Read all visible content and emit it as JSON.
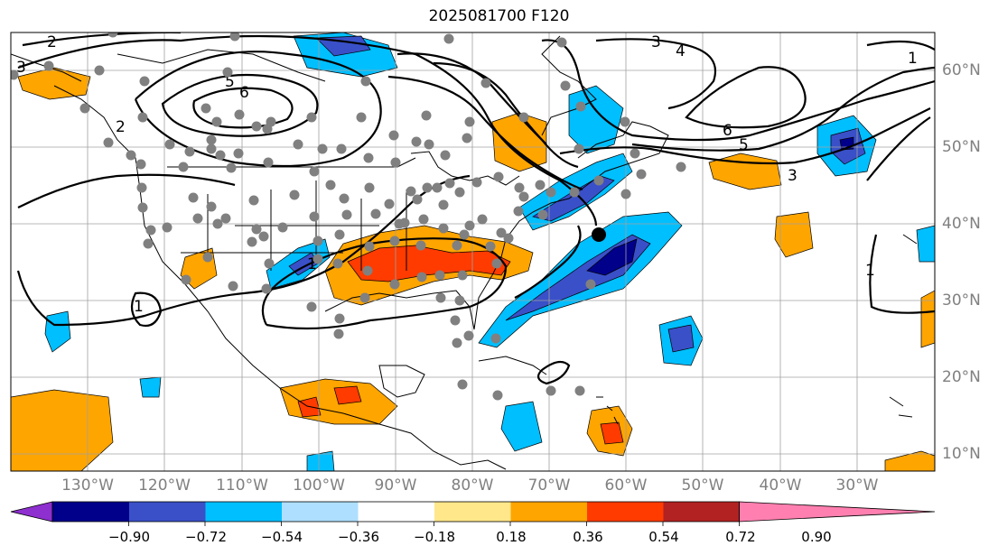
{
  "title": "2025081700 F120",
  "longitude_labels": [
    "130°W",
    "120°W",
    "110°W",
    "100°W",
    "90°W",
    "80°W",
    "70°W",
    "60°W",
    "50°W",
    "40°W",
    "30°W"
  ],
  "latitude_labels": [
    "60°N",
    "50°N",
    "40°N",
    "30°N",
    "20°N",
    "10°N"
  ],
  "contour_labels": [
    "2",
    "3",
    "5",
    "6",
    "4",
    "3",
    "1",
    "2",
    "6",
    "5",
    "3",
    "1",
    "1",
    "1"
  ],
  "colorbar": {
    "ticks": [
      "−0.90",
      "−0.72",
      "−0.54",
      "−0.36",
      "−0.18",
      "0.18",
      "0.36",
      "0.54",
      "0.72",
      "0.90"
    ],
    "colors": [
      "#8e2fcf",
      "#00008b",
      "#3a50c8",
      "#00bfff",
      "#aedfff",
      "#ffffff",
      "#ffe78a",
      "#ffa500",
      "#ff3b00",
      "#b22222",
      "#ff80b0"
    ]
  }
}
